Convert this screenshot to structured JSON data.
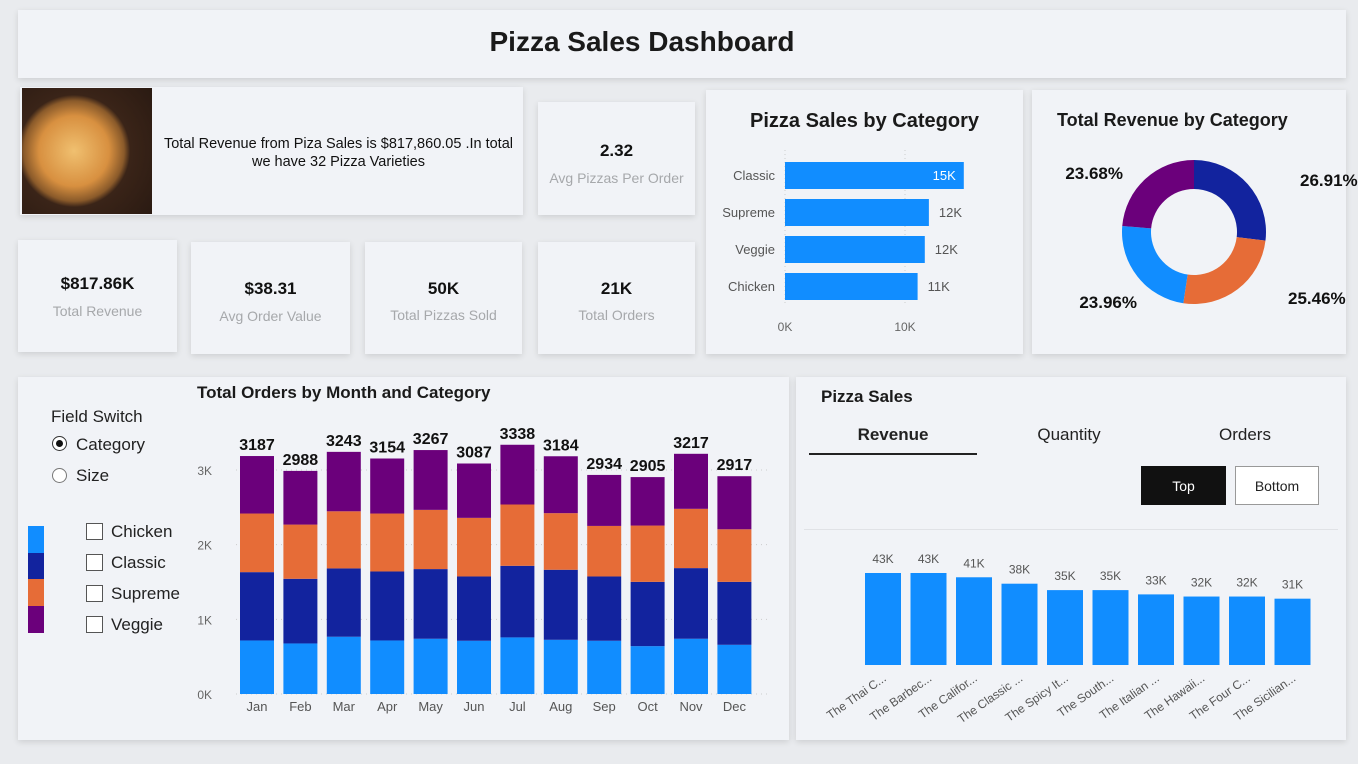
{
  "header": {
    "title": "Pizza Sales Dashboard"
  },
  "info": {
    "text": "Total Revenue from Piza Sales is $817,860.05 .In total we have 32 Pizza Varieties",
    "image": "pizza-photo"
  },
  "kpis": [
    {
      "value": "2.32",
      "label": "Avg Pizzas Per Order"
    },
    {
      "value": "$817.86K",
      "label": "Total Revenue"
    },
    {
      "value": "$38.31",
      "label": "Avg Order Value"
    },
    {
      "value": "50K",
      "label": "Total Pizzas Sold"
    },
    {
      "value": "21K",
      "label": "Total Orders"
    }
  ],
  "colors": {
    "Chicken": "#118dff",
    "Classic": "#12239e",
    "Supreme": "#e66c37",
    "Veggie": "#6b007b",
    "bar": "#118dff"
  },
  "filters": {
    "field_switch_label": "Field Switch",
    "options": [
      {
        "label": "Category",
        "selected": true
      },
      {
        "label": "Size",
        "selected": false
      }
    ],
    "legend": [
      {
        "label": "Chicken",
        "checked": false
      },
      {
        "label": "Classic",
        "checked": false
      },
      {
        "label": "Supreme",
        "checked": false
      },
      {
        "label": "Veggie",
        "checked": false
      }
    ]
  },
  "pizza_sales": {
    "title": "Pizza Sales",
    "tabs": [
      "Revenue",
      "Quantity",
      "Orders"
    ],
    "active_tab": "Revenue",
    "buttons": [
      "Top",
      "Bottom"
    ],
    "active_button": "Top"
  },
  "chart_data": [
    {
      "type": "bar",
      "orientation": "horizontal",
      "title": "Pizza Sales by Category",
      "categories": [
        "Classic",
        "Supreme",
        "Veggie",
        "Chicken"
      ],
      "values": [
        14.9,
        11.99,
        11.65,
        11.05
      ],
      "data_labels": [
        "15K",
        "12K",
        "12K",
        "11K"
      ],
      "xticks": [
        "0K",
        "10K"
      ],
      "xlim": [
        0,
        16
      ],
      "unit": "K"
    },
    {
      "type": "pie",
      "variant": "donut",
      "title": "Total Revenue by Category",
      "categories": [
        "Classic",
        "Supreme",
        "Chicken",
        "Veggie"
      ],
      "values": [
        26.91,
        25.46,
        23.96,
        23.68
      ],
      "data_labels": [
        "26.91%",
        "25.46%",
        "23.96%",
        "23.68%"
      ]
    },
    {
      "type": "bar",
      "stacked": true,
      "title": "Total Orders by Month and Category",
      "categories": [
        "Jan",
        "Feb",
        "Mar",
        "Apr",
        "May",
        "Jun",
        "Jul",
        "Aug",
        "Sep",
        "Oct",
        "Nov",
        "Dec"
      ],
      "series": [
        {
          "name": "Chicken",
          "values": [
            717,
            677,
            767,
            717,
            740,
            713,
            758,
            726,
            713,
            641,
            740,
            659
          ]
        },
        {
          "name": "Classic",
          "values": [
            915,
            866,
            915,
            924,
            933,
            861,
            959,
            938,
            861,
            861,
            946,
            843
          ]
        },
        {
          "name": "Supreme",
          "values": [
            785,
            726,
            765,
            776,
            793,
            785,
            821,
            758,
            677,
            754,
            794,
            704
          ]
        },
        {
          "name": "Veggie",
          "values": [
            770,
            719,
            796,
            737,
            801,
            728,
            800,
            762,
            683,
            649,
            737,
            711
          ]
        }
      ],
      "totals": [
        3187,
        2988,
        3243,
        3154,
        3267,
        3087,
        3338,
        3184,
        2934,
        2905,
        3217,
        2917
      ],
      "yticks": [
        "0K",
        "1K",
        "2K",
        "3K"
      ],
      "ylim": [
        0,
        3000
      ],
      "grid": true
    },
    {
      "type": "bar",
      "title": "Pizza Sales",
      "categories": [
        "The Thai C...",
        "The Barbec...",
        "The Califor...",
        "The Classic ...",
        "The Spicy It...",
        "The South...",
        "The Italian ...",
        "The Hawaii...",
        "The Four C...",
        "The Sicilian..."
      ],
      "values": [
        43,
        43,
        41,
        38,
        35,
        35,
        33,
        32,
        32,
        31
      ],
      "data_labels": [
        "43K",
        "43K",
        "41K",
        "38K",
        "35K",
        "35K",
        "33K",
        "32K",
        "32K",
        "31K"
      ],
      "unit": "K"
    }
  ]
}
